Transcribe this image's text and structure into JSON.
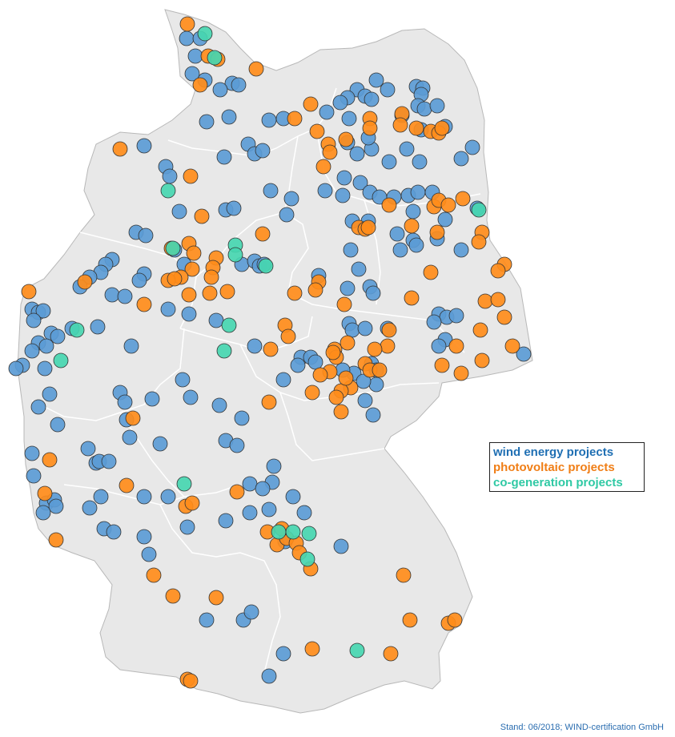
{
  "legend": {
    "wind": "wind energy projects",
    "pv": "photovoltaic projects",
    "chp": "co-generation projects"
  },
  "footer": "Stand: 06/2018; WIND-certification GmbH",
  "colors": {
    "wind": "#5b9bd5",
    "pv": "#ff8c1a",
    "chp": "#47d6b0",
    "wind_text": "#1f6fb3",
    "pv_text": "#f07e16",
    "chp_text": "#2fc9a4",
    "land": "#e8e8e8",
    "border": "#ffffff"
  }
}
